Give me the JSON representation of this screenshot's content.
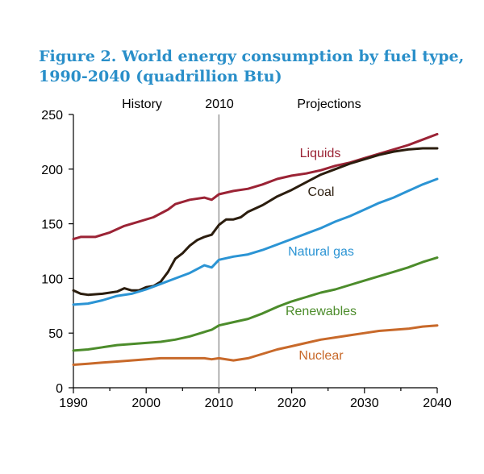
{
  "figure": {
    "title_line1": "Figure 2. World energy consumption by fuel type,",
    "title_line2": "1990-2040 (quadrillion Btu)"
  },
  "annotations": {
    "history": "History",
    "divider_year": "2010",
    "projections": "Projections"
  },
  "chart_data": {
    "type": "line",
    "title": "Figure 2. World energy consumption by fuel type, 1990-2040 (quadrillion Btu)",
    "xlabel": "",
    "ylabel": "",
    "xlim": [
      1990,
      2040
    ],
    "ylim": [
      0,
      250
    ],
    "x_ticks": [
      1990,
      2000,
      2010,
      2020,
      2030,
      2040
    ],
    "y_ticks": [
      0,
      50,
      100,
      150,
      200,
      250
    ],
    "grid": false,
    "divider_x": 2010,
    "series": [
      {
        "name": "Liquids",
        "color": "#9b2335",
        "points": [
          [
            1990,
            136
          ],
          [
            1991,
            138
          ],
          [
            1993,
            138
          ],
          [
            1995,
            142
          ],
          [
            1997,
            148
          ],
          [
            1999,
            152
          ],
          [
            2001,
            156
          ],
          [
            2003,
            163
          ],
          [
            2004,
            168
          ],
          [
            2006,
            172
          ],
          [
            2008,
            174
          ],
          [
            2009,
            172
          ],
          [
            2010,
            177
          ],
          [
            2012,
            180
          ],
          [
            2014,
            182
          ],
          [
            2016,
            186
          ],
          [
            2018,
            191
          ],
          [
            2020,
            194
          ],
          [
            2022,
            196
          ],
          [
            2024,
            199
          ],
          [
            2026,
            203
          ],
          [
            2028,
            206
          ],
          [
            2030,
            210
          ],
          [
            2032,
            214
          ],
          [
            2034,
            218
          ],
          [
            2036,
            222
          ],
          [
            2038,
            227
          ],
          [
            2040,
            232
          ]
        ]
      },
      {
        "name": "Coal",
        "color": "#2b1d0e",
        "points": [
          [
            1990,
            89
          ],
          [
            1991,
            86
          ],
          [
            1992,
            85
          ],
          [
            1994,
            86
          ],
          [
            1996,
            88
          ],
          [
            1997,
            91
          ],
          [
            1998,
            89
          ],
          [
            1999,
            89
          ],
          [
            2000,
            92
          ],
          [
            2001,
            93
          ],
          [
            2002,
            97
          ],
          [
            2003,
            106
          ],
          [
            2004,
            118
          ],
          [
            2005,
            123
          ],
          [
            2006,
            130
          ],
          [
            2007,
            135
          ],
          [
            2008,
            138
          ],
          [
            2009,
            140
          ],
          [
            2010,
            149
          ],
          [
            2011,
            154
          ],
          [
            2012,
            154
          ],
          [
            2013,
            156
          ],
          [
            2014,
            161
          ],
          [
            2016,
            167
          ],
          [
            2018,
            175
          ],
          [
            2020,
            181
          ],
          [
            2022,
            188
          ],
          [
            2024,
            195
          ],
          [
            2026,
            200
          ],
          [
            2028,
            205
          ],
          [
            2030,
            209
          ],
          [
            2032,
            213
          ],
          [
            2034,
            216
          ],
          [
            2036,
            218
          ],
          [
            2038,
            219
          ],
          [
            2040,
            219
          ]
        ]
      },
      {
        "name": "Natural gas",
        "color": "#2b94d4",
        "points": [
          [
            1990,
            76
          ],
          [
            1992,
            77
          ],
          [
            1994,
            80
          ],
          [
            1996,
            84
          ],
          [
            1998,
            86
          ],
          [
            2000,
            90
          ],
          [
            2002,
            95
          ],
          [
            2004,
            100
          ],
          [
            2006,
            105
          ],
          [
            2008,
            112
          ],
          [
            2009,
            110
          ],
          [
            2010,
            117
          ],
          [
            2012,
            120
          ],
          [
            2014,
            122
          ],
          [
            2016,
            126
          ],
          [
            2018,
            131
          ],
          [
            2020,
            136
          ],
          [
            2022,
            141
          ],
          [
            2024,
            146
          ],
          [
            2026,
            152
          ],
          [
            2028,
            157
          ],
          [
            2030,
            163
          ],
          [
            2032,
            169
          ],
          [
            2034,
            174
          ],
          [
            2036,
            180
          ],
          [
            2038,
            186
          ],
          [
            2040,
            191
          ]
        ]
      },
      {
        "name": "Renewables",
        "color": "#4c8c2b",
        "points": [
          [
            1990,
            34
          ],
          [
            1992,
            35
          ],
          [
            1994,
            37
          ],
          [
            1996,
            39
          ],
          [
            1998,
            40
          ],
          [
            2000,
            41
          ],
          [
            2002,
            42
          ],
          [
            2004,
            44
          ],
          [
            2006,
            47
          ],
          [
            2008,
            51
          ],
          [
            2009,
            53
          ],
          [
            2010,
            57
          ],
          [
            2012,
            60
          ],
          [
            2014,
            63
          ],
          [
            2016,
            68
          ],
          [
            2018,
            74
          ],
          [
            2020,
            79
          ],
          [
            2022,
            83
          ],
          [
            2024,
            87
          ],
          [
            2026,
            90
          ],
          [
            2028,
            94
          ],
          [
            2030,
            98
          ],
          [
            2032,
            102
          ],
          [
            2034,
            106
          ],
          [
            2036,
            110
          ],
          [
            2038,
            115
          ],
          [
            2040,
            119
          ]
        ]
      },
      {
        "name": "Nuclear",
        "color": "#c8692a",
        "points": [
          [
            1990,
            21
          ],
          [
            1992,
            22
          ],
          [
            1994,
            23
          ],
          [
            1996,
            24
          ],
          [
            1998,
            25
          ],
          [
            2000,
            26
          ],
          [
            2002,
            27
          ],
          [
            2004,
            27
          ],
          [
            2006,
            27
          ],
          [
            2008,
            27
          ],
          [
            2009,
            26
          ],
          [
            2010,
            27
          ],
          [
            2012,
            25
          ],
          [
            2014,
            27
          ],
          [
            2016,
            31
          ],
          [
            2018,
            35
          ],
          [
            2020,
            38
          ],
          [
            2022,
            41
          ],
          [
            2024,
            44
          ],
          [
            2026,
            46
          ],
          [
            2028,
            48
          ],
          [
            2030,
            50
          ],
          [
            2032,
            52
          ],
          [
            2034,
            53
          ],
          [
            2036,
            54
          ],
          [
            2038,
            56
          ],
          [
            2040,
            57
          ]
        ]
      }
    ]
  }
}
